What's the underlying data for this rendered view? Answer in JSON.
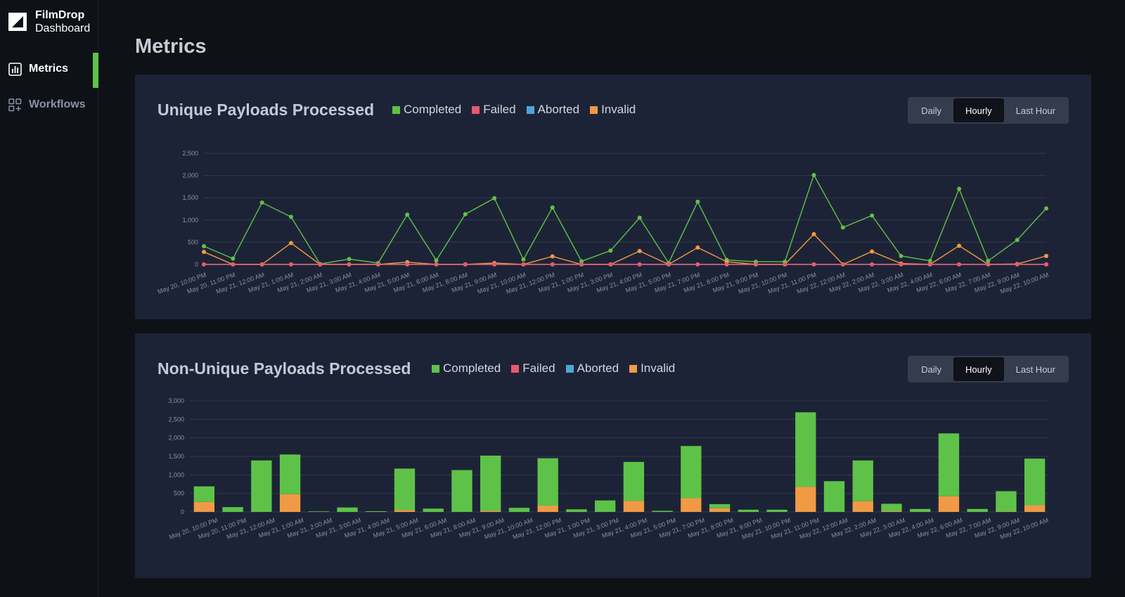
{
  "app": {
    "brand_line1": "FilmDrop",
    "brand_line2": "Dashboard"
  },
  "sidebar": {
    "items": [
      {
        "label": "Metrics",
        "icon": "bar-chart-icon",
        "active": true
      },
      {
        "label": "Workflows",
        "icon": "grid-plus-icon",
        "active": false
      }
    ]
  },
  "main": {
    "title": "Metrics"
  },
  "colors": {
    "completed": "#5ec249",
    "failed": "#e8596a",
    "aborted": "#4ea6d8",
    "invalid": "#f09a45",
    "accent": "#5ec249"
  },
  "legend": [
    "Completed",
    "Failed",
    "Aborted",
    "Invalid"
  ],
  "toggle": [
    "Daily",
    "Hourly",
    "Last Hour"
  ],
  "panels": [
    {
      "title": "Unique Payloads Processed",
      "selected_toggle": "Hourly"
    },
    {
      "title": "Non-Unique Payloads Processed",
      "selected_toggle": "Hourly"
    }
  ],
  "chart_data": [
    {
      "type": "line",
      "title": "Unique Payloads Processed",
      "ylim": [
        0,
        2500
      ],
      "yticks": [
        "0",
        "500",
        "1,000",
        "1,500",
        "2,000",
        "2,500"
      ],
      "grid": true,
      "legend_position": "top",
      "x": [
        "May 20, 10:00 PM",
        "May 20, 11:00 PM",
        "May 21, 12:00 AM",
        "May 21, 1:00 AM",
        "May 21, 2:00 AM",
        "May 21, 3:00 AM",
        "May 21, 4:00 AM",
        "May 21, 5:00 AM",
        "May 21, 6:00 AM",
        "May 21, 8:00 AM",
        "May 21, 9:00 AM",
        "May 21, 10:00 AM",
        "May 21, 12:00 PM",
        "May 21, 1:00 PM",
        "May 21, 3:00 PM",
        "May 21, 4:00 PM",
        "May 21, 5:00 PM",
        "May 21, 7:00 PM",
        "May 21, 8:00 PM",
        "May 21, 9:00 PM",
        "May 21, 10:00 PM",
        "May 21, 11:00 PM",
        "May 22, 12:00 AM",
        "May 22, 2:00 AM",
        "May 22, 3:00 AM",
        "May 22, 4:00 AM",
        "May 22, 6:00 AM",
        "May 22, 7:00 AM",
        "May 22, 9:00 AM",
        "May 22, 10:00 AM"
      ],
      "series": [
        {
          "name": "Completed",
          "values": [
            410,
            130,
            1390,
            1070,
            10,
            120,
            30,
            1120,
            90,
            1130,
            1490,
            110,
            1280,
            70,
            310,
            1050,
            30,
            1410,
            100,
            60,
            60,
            2010,
            830,
            1100,
            190,
            80,
            1700,
            80,
            550,
            1260
          ]
        },
        {
          "name": "Failed",
          "values": [
            0,
            0,
            0,
            0,
            0,
            0,
            0,
            0,
            0,
            0,
            0,
            0,
            0,
            0,
            0,
            0,
            0,
            0,
            0,
            0,
            0,
            0,
            0,
            0,
            0,
            0,
            0,
            0,
            0,
            0
          ]
        },
        {
          "name": "Aborted",
          "values": [
            0,
            0,
            0,
            0,
            0,
            0,
            0,
            0,
            0,
            0,
            0,
            0,
            0,
            0,
            0,
            0,
            0,
            0,
            0,
            0,
            0,
            0,
            0,
            0,
            0,
            0,
            0,
            0,
            0,
            0
          ]
        },
        {
          "name": "Invalid",
          "values": [
            280,
            0,
            0,
            480,
            0,
            0,
            0,
            50,
            0,
            0,
            30,
            0,
            180,
            0,
            0,
            300,
            0,
            380,
            60,
            0,
            0,
            680,
            0,
            290,
            20,
            0,
            420,
            0,
            10,
            190
          ]
        }
      ]
    },
    {
      "type": "bar",
      "stacked": true,
      "title": "Non-Unique Payloads Processed",
      "ylim": [
        0,
        3000
      ],
      "yticks": [
        "0",
        "500",
        "1,000",
        "1,500",
        "2,000",
        "2,500",
        "3,000"
      ],
      "grid": true,
      "legend_position": "top",
      "categories": [
        "May 20, 10:00 PM",
        "May 20, 11:00 PM",
        "May 21, 12:00 AM",
        "May 21, 1:00 AM",
        "May 21, 2:00 AM",
        "May 21, 3:00 AM",
        "May 21, 4:00 AM",
        "May 21, 5:00 AM",
        "May 21, 6:00 AM",
        "May 21, 8:00 AM",
        "May 21, 9:00 AM",
        "May 21, 10:00 AM",
        "May 21, 12:00 PM",
        "May 21, 1:00 PM",
        "May 21, 3:00 PM",
        "May 21, 4:00 PM",
        "May 21, 5:00 PM",
        "May 21, 7:00 PM",
        "May 21, 8:00 PM",
        "May 21, 9:00 PM",
        "May 21, 10:00 PM",
        "May 21, 11:00 PM",
        "May 22, 12:00 AM",
        "May 22, 2:00 AM",
        "May 22, 3:00 AM",
        "May 22, 4:00 AM",
        "May 22, 6:00 AM",
        "May 22, 7:00 AM",
        "May 22, 9:00 AM",
        "May 22, 10:00 AM"
      ],
      "series": [
        {
          "name": "Completed",
          "values": [
            420,
            130,
            1390,
            1070,
            15,
            120,
            20,
            1120,
            90,
            1130,
            1490,
            110,
            1280,
            70,
            310,
            1050,
            30,
            1410,
            110,
            60,
            60,
            2010,
            830,
            1100,
            200,
            80,
            1700,
            80,
            550,
            1260
          ]
        },
        {
          "name": "Failed",
          "values": [
            0,
            0,
            0,
            0,
            0,
            0,
            0,
            0,
            0,
            0,
            0,
            0,
            0,
            0,
            0,
            0,
            0,
            0,
            0,
            0,
            0,
            0,
            0,
            0,
            0,
            0,
            0,
            0,
            0,
            0
          ]
        },
        {
          "name": "Aborted",
          "values": [
            0,
            0,
            0,
            0,
            0,
            0,
            0,
            0,
            0,
            0,
            0,
            0,
            0,
            0,
            0,
            0,
            0,
            0,
            0,
            0,
            0,
            0,
            0,
            0,
            0,
            0,
            0,
            0,
            0,
            0
          ]
        },
        {
          "name": "Invalid",
          "values": [
            270,
            0,
            0,
            480,
            0,
            0,
            0,
            50,
            0,
            0,
            30,
            0,
            170,
            0,
            0,
            300,
            0,
            370,
            100,
            0,
            0,
            680,
            0,
            290,
            20,
            0,
            420,
            0,
            10,
            180
          ]
        }
      ]
    }
  ]
}
